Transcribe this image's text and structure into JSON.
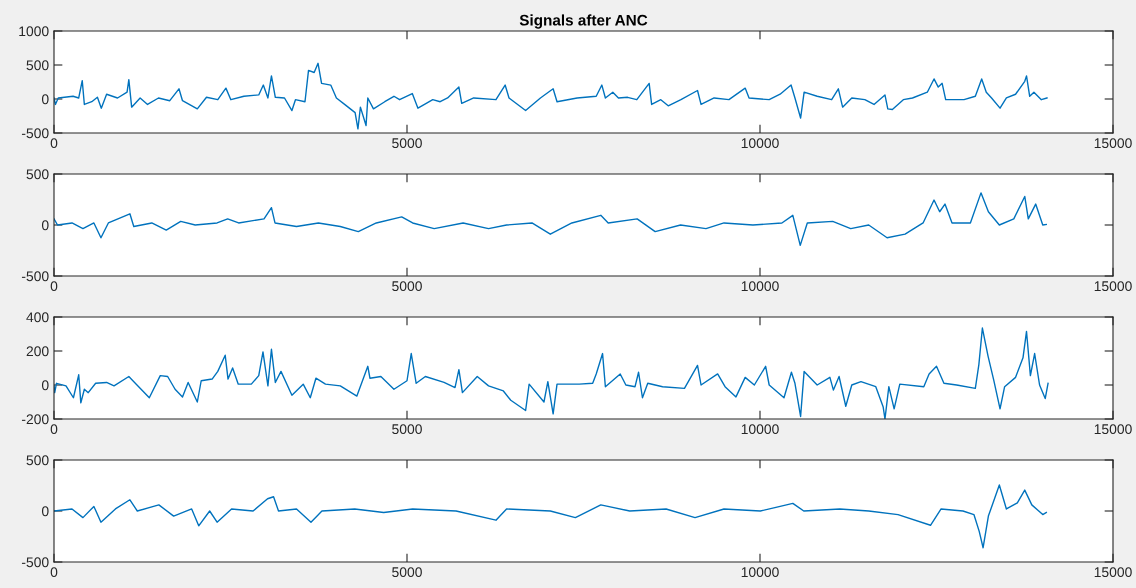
{
  "chart_data": [
    {
      "type": "line",
      "title": "Signals after ANC",
      "xlim": [
        0,
        15000
      ],
      "xticks": [
        0,
        5000,
        10000,
        15000
      ],
      "ylim": [
        -500,
        1000
      ],
      "yticks": [
        -500,
        0,
        500,
        1000
      ],
      "x": [
        0,
        20,
        60,
        270,
        350,
        400,
        430,
        535,
        615,
        670,
        745,
        900,
        1035,
        1060,
        1100,
        1220,
        1325,
        1480,
        1640,
        1770,
        1820,
        2030,
        2160,
        2320,
        2435,
        2505,
        2690,
        2900,
        2965,
        3030,
        3080,
        3135,
        3265,
        3370,
        3420,
        3555,
        3605,
        3685,
        3740,
        3790,
        3920,
        4000,
        4130,
        4265,
        4305,
        4340,
        4420,
        4445,
        4525,
        4685,
        4815,
        4895,
        5075,
        5155,
        5365,
        5470,
        5575,
        5735,
        5775,
        5945,
        6260,
        6390,
        6445,
        6680,
        6890,
        7070,
        7125,
        7410,
        7680,
        7760,
        7810,
        7915,
        7995,
        8125,
        8255,
        8430,
        8465,
        8595,
        8700,
        8880,
        9115,
        9165,
        9350,
        9560,
        9790,
        9845,
        10130,
        10285,
        10440,
        10495,
        10575,
        10625,
        10810,
        11015,
        11110,
        11170,
        11300,
        11485,
        11615,
        11770,
        11810,
        11875,
        12030,
        12160,
        12370,
        12465,
        12525,
        12580,
        12630,
        12890,
        13050,
        13140,
        13205,
        13280,
        13400,
        13490,
        13620,
        13750,
        13775,
        13820,
        13880,
        13985,
        14065
      ],
      "series": [
        {
          "color": "#0072bd",
          "values": [
            15,
            -80,
            15,
            40,
            15,
            270,
            -80,
            -40,
            25,
            -135,
            70,
            15,
            100,
            285,
            -120,
            15,
            -80,
            15,
            -25,
            150,
            -25,
            -145,
            25,
            -10,
            160,
            -10,
            40,
            60,
            205,
            15,
            340,
            25,
            15,
            -170,
            -10,
            -40,
            420,
            390,
            525,
            230,
            205,
            15,
            -90,
            -200,
            -440,
            -120,
            -390,
            15,
            -145,
            -40,
            40,
            -10,
            80,
            -135,
            -10,
            -40,
            15,
            175,
            -65,
            15,
            -10,
            205,
            15,
            -170,
            15,
            150,
            -40,
            15,
            40,
            205,
            15,
            100,
            15,
            25,
            -10,
            230,
            -80,
            -10,
            -100,
            -10,
            125,
            -80,
            15,
            -10,
            160,
            15,
            -10,
            70,
            205,
            15,
            -280,
            100,
            40,
            -10,
            150,
            -120,
            15,
            -10,
            -80,
            60,
            -145,
            -155,
            -10,
            15,
            100,
            295,
            175,
            230,
            -10,
            -10,
            40,
            295,
            100,
            15,
            -135,
            15,
            70,
            260,
            340,
            40,
            100,
            -10,
            15
          ]
        }
      ]
    },
    {
      "type": "line",
      "xlim": [
        0,
        15000
      ],
      "xticks": [
        0,
        5000,
        10000,
        15000
      ],
      "ylim": [
        -500,
        500
      ],
      "yticks": [
        -500,
        0,
        500
      ],
      "x": [
        0,
        50,
        255,
        410,
        565,
        665,
        770,
        1075,
        1130,
        1385,
        1590,
        1795,
        2000,
        2310,
        2460,
        2615,
        2975,
        3080,
        3130,
        3435,
        3745,
        4055,
        4310,
        4565,
        4925,
        5080,
        5385,
        5795,
        6155,
        6410,
        6770,
        7030,
        7335,
        7745,
        7850,
        8260,
        8515,
        8875,
        9235,
        9490,
        9900,
        10310,
        10465,
        10570,
        10670,
        11030,
        11285,
        11540,
        11800,
        12055,
        12310,
        12465,
        12545,
        12620,
        12720,
        12980,
        13130,
        13235,
        13390,
        13595,
        13750,
        13800,
        13905,
        14005,
        14055
      ],
      "series": [
        {
          "color": "#0072bd",
          "values": [
            60,
            0,
            20,
            -35,
            20,
            -125,
            20,
            110,
            -15,
            20,
            -50,
            35,
            0,
            20,
            60,
            20,
            60,
            170,
            20,
            -15,
            20,
            -15,
            -65,
            20,
            80,
            20,
            -35,
            20,
            -35,
            0,
            20,
            -90,
            20,
            95,
            20,
            60,
            -65,
            0,
            -35,
            20,
            0,
            20,
            95,
            -200,
            20,
            35,
            -35,
            0,
            -125,
            -90,
            20,
            245,
            130,
            205,
            20,
            20,
            315,
            130,
            0,
            60,
            280,
            60,
            205,
            0,
            5
          ]
        }
      ]
    },
    {
      "type": "line",
      "xlim": [
        0,
        15000
      ],
      "xticks": [
        0,
        5000,
        10000,
        15000
      ],
      "ylim": [
        -200,
        400
      ],
      "yticks": [
        -200,
        0,
        200,
        400
      ],
      "x": [
        0,
        10,
        35,
        170,
        275,
        350,
        380,
        430,
        485,
        590,
        745,
        850,
        1060,
        1165,
        1350,
        1505,
        1610,
        1715,
        1820,
        1900,
        2030,
        2085,
        2240,
        2320,
        2425,
        2465,
        2530,
        2610,
        2795,
        2900,
        2960,
        3030,
        3080,
        3135,
        3215,
        3370,
        3530,
        3630,
        3710,
        3845,
        4055,
        4290,
        4445,
        4475,
        4630,
        4815,
        5000,
        5060,
        5130,
        5260,
        5525,
        5680,
        5735,
        5785,
        5995,
        6155,
        6365,
        6470,
        6680,
        6730,
        6940,
        6995,
        7070,
        7125,
        7440,
        7630,
        7680,
        7770,
        7810,
        8020,
        8100,
        8230,
        8280,
        8335,
        8410,
        8620,
        8930,
        9115,
        9165,
        9400,
        9505,
        9660,
        9790,
        9920,
        10080,
        10130,
        10340,
        10445,
        10495,
        10575,
        10625,
        10810,
        10990,
        11040,
        11120,
        11215,
        11300,
        11430,
        11640,
        11745,
        11770,
        11825,
        11900,
        11980,
        12320,
        12395,
        12500,
        12605,
        12785,
        13050,
        13100,
        13150,
        13230,
        13310,
        13400,
        13465,
        13620,
        13725,
        13775,
        13830,
        13890,
        13960,
        14040,
        14080
      ],
      "series": [
        {
          "color": "#0072bd",
          "values": [
            -5,
            -45,
            10,
            -5,
            -75,
            60,
            -105,
            -25,
            -45,
            10,
            15,
            -5,
            50,
            5,
            -75,
            55,
            50,
            -25,
            -70,
            15,
            -100,
            25,
            35,
            80,
            175,
            35,
            100,
            5,
            5,
            55,
            195,
            -5,
            210,
            15,
            80,
            -60,
            5,
            -75,
            40,
            5,
            -5,
            -65,
            110,
            40,
            50,
            -25,
            25,
            185,
            10,
            50,
            15,
            -15,
            90,
            -45,
            50,
            -5,
            -35,
            -90,
            -150,
            5,
            -100,
            20,
            -170,
            5,
            5,
            10,
            65,
            185,
            -10,
            65,
            0,
            -10,
            75,
            -75,
            10,
            -10,
            -20,
            115,
            0,
            65,
            -10,
            -70,
            45,
            0,
            110,
            0,
            -75,
            75,
            10,
            -185,
            80,
            0,
            45,
            -30,
            50,
            -125,
            0,
            20,
            -10,
            -130,
            -200,
            -10,
            -140,
            5,
            -10,
            65,
            110,
            10,
            0,
            -20,
            120,
            335,
            170,
            30,
            -140,
            -10,
            45,
            160,
            315,
            55,
            185,
            0,
            -80,
            10
          ]
        }
      ]
    },
    {
      "type": "line",
      "xlim": [
        0,
        15000
      ],
      "xticks": [
        0,
        5000,
        10000,
        15000
      ],
      "ylim": [
        -500,
        500
      ],
      "yticks": [
        -500,
        0,
        500
      ],
      "x": [
        0,
        255,
        410,
        565,
        665,
        870,
        1075,
        1180,
        1485,
        1695,
        1950,
        2050,
        2205,
        2310,
        2515,
        2820,
        3025,
        3110,
        3180,
        3435,
        3640,
        3795,
        4260,
        4670,
        5080,
        5695,
        6260,
        6410,
        7030,
        7385,
        7745,
        8155,
        8670,
        9080,
        9490,
        10005,
        10465,
        10620,
        11130,
        11540,
        11955,
        12415,
        12565,
        12875,
        13030,
        13105,
        13160,
        13235,
        13390,
        13490,
        13645,
        13750,
        13850,
        14005,
        14055
      ],
      "series": [
        {
          "color": "#0072bd",
          "values": [
            0,
            20,
            -65,
            45,
            -110,
            20,
            110,
            0,
            60,
            -50,
            20,
            -145,
            0,
            -110,
            20,
            0,
            120,
            140,
            0,
            20,
            -110,
            0,
            20,
            -15,
            20,
            0,
            -90,
            20,
            0,
            -65,
            60,
            0,
            20,
            -65,
            20,
            0,
            75,
            0,
            20,
            0,
            -35,
            -140,
            20,
            0,
            -35,
            -200,
            -360,
            -50,
            255,
            20,
            80,
            205,
            60,
            -35,
            -15
          ]
        }
      ]
    }
  ]
}
